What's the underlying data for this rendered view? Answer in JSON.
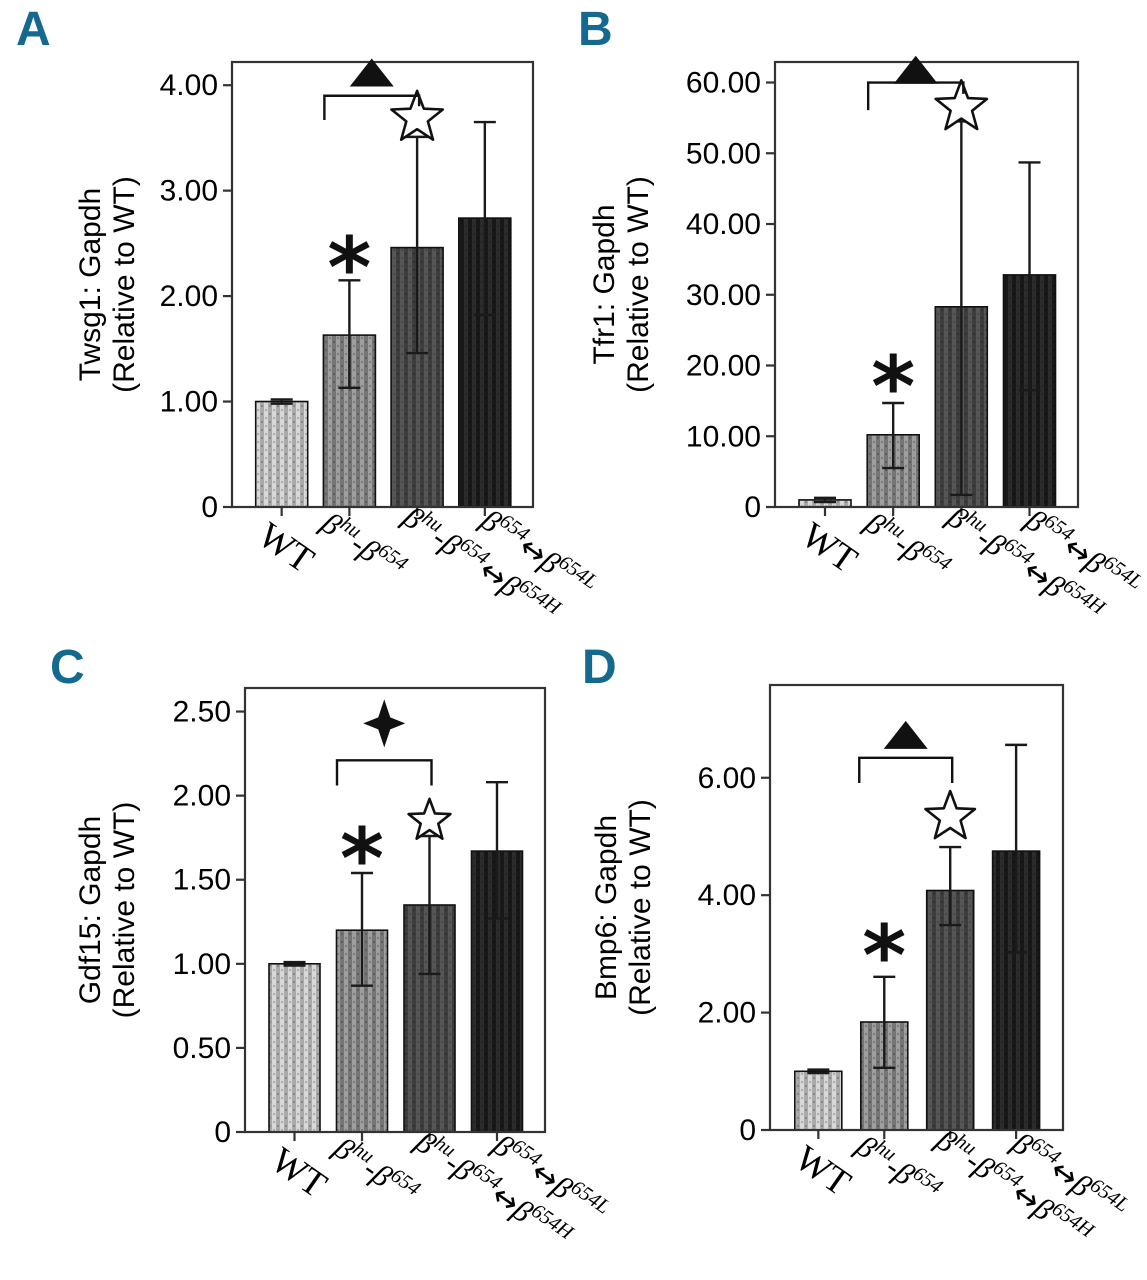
{
  "colors": {
    "background": "#ffffff",
    "panel_letter": "#15688e",
    "axis_frame": "#333333",
    "bar_outline": "#111111",
    "error_bar": "#1a1a1a",
    "annotation": "#111111",
    "bar_styles": [
      {
        "name": "light-gray-stripes",
        "c1": "#d8d8d8",
        "c2": "#a9a9a9"
      },
      {
        "name": "medium-gray-stripes",
        "c1": "#9e9e9e",
        "c2": "#757575"
      },
      {
        "name": "dark-gray-stripes",
        "c1": "#565656",
        "c2": "#3d3d3d"
      },
      {
        "name": "charcoal-stripes",
        "c1": "#2c2c2c",
        "c2": "#181818"
      }
    ]
  },
  "x_axis": {
    "categories": [
      "WT",
      "βhu-β654",
      "βhu-β654↔β654H",
      "β654↔β654L"
    ],
    "categories_rich": [
      [
        {
          "t": "WT",
          "sup": false,
          "italic": false
        }
      ],
      [
        {
          "t": "β",
          "sup": false,
          "italic": true
        },
        {
          "t": "hu",
          "sup": true,
          "italic": true
        },
        {
          "t": "-β",
          "sup": false,
          "italic": true
        },
        {
          "t": "654",
          "sup": true,
          "italic": true
        }
      ],
      [
        {
          "t": "β",
          "sup": false,
          "italic": true
        },
        {
          "t": "hu",
          "sup": true,
          "italic": true
        },
        {
          "t": "-β",
          "sup": false,
          "italic": true
        },
        {
          "t": "654",
          "sup": true,
          "italic": true
        },
        {
          "t": "↔",
          "sup": false,
          "italic": false
        },
        {
          "t": "β",
          "sup": false,
          "italic": true
        },
        {
          "t": "654H",
          "sup": true,
          "italic": true
        }
      ],
      [
        {
          "t": "β",
          "sup": false,
          "italic": true
        },
        {
          "t": "654",
          "sup": true,
          "italic": true
        },
        {
          "t": "↔",
          "sup": false,
          "italic": false
        },
        {
          "t": "β",
          "sup": false,
          "italic": true
        },
        {
          "t": "654L",
          "sup": true,
          "italic": true
        }
      ]
    ]
  },
  "chart_data": [
    {
      "panel": "A",
      "type": "bar",
      "ylabel_lines": [
        "Twsg1: Gapdh",
        "(Relative to WT)"
      ],
      "categories": [
        "WT",
        "βhu-β654",
        "βhu-β654↔β654H",
        "β654↔β654L"
      ],
      "values": [
        1.0,
        1.63,
        2.46,
        2.74
      ],
      "error_low": [
        0.02,
        0.5,
        1.0,
        0.92
      ],
      "error_high": [
        0.02,
        0.52,
        1.05,
        0.91
      ],
      "ylim": [
        0,
        4.22
      ],
      "ytick_values": [
        4,
        3,
        2,
        1,
        0
      ],
      "ytick_labels": [
        "4.00",
        "3.00",
        "2.00",
        "1.00",
        "0"
      ],
      "grid": false,
      "annotations": {
        "asterisk": {
          "bar": 2,
          "y": 2.37,
          "glyph": "*"
        },
        "open_star": {
          "bar": 3,
          "y": 3.69,
          "glyph": "☆"
        },
        "bracket": {
          "from_bar": 2,
          "to_bar": 3,
          "y": 3.9,
          "left_drop": 0.23,
          "right_drop": 0.1
        },
        "bracket_symbol": {
          "glyph": "▲",
          "shape": "filled_triangle",
          "y": 4.12
        }
      }
    },
    {
      "panel": "B",
      "type": "bar",
      "ylabel_lines": [
        "Tfr1: Gapdh",
        "(Relative to WT)"
      ],
      "categories": [
        "WT",
        "βhu-β654",
        "βhu-β654↔β654H",
        "β654↔β654L"
      ],
      "values": [
        1.0,
        10.2,
        28.3,
        32.8
      ],
      "error_low": [
        0.3,
        4.7,
        26.6,
        16.3
      ],
      "error_high": [
        0.3,
        4.5,
        26.2,
        15.9
      ],
      "ylim": [
        0,
        62.9
      ],
      "ytick_values": [
        60,
        50,
        40,
        30,
        20,
        10,
        0
      ],
      "ytick_labels": [
        "60.00",
        "50.00",
        "40.00",
        "30.00",
        "20.00",
        "10.00",
        "0"
      ],
      "grid": false,
      "annotations": {
        "asterisk": {
          "bar": 2,
          "y": 18.5,
          "glyph": "*"
        },
        "open_star": {
          "bar": 3,
          "y": 56.5,
          "glyph": "☆"
        },
        "bracket": {
          "from_bar": 2,
          "to_bar": 3,
          "y": 60.0,
          "left_drop": 3.9,
          "right_drop": 1.6
        },
        "bracket_symbol": {
          "glyph": "▲",
          "shape": "filled_triangle",
          "y": 61.8
        }
      }
    },
    {
      "panel": "C",
      "type": "bar",
      "ylabel_lines": [
        "Gdf15: Gapdh",
        "(Relative to WT)"
      ],
      "categories": [
        "WT",
        "βhu-β654",
        "βhu-β654↔β654H",
        "β654↔β654L"
      ],
      "values": [
        1.0,
        1.2,
        1.35,
        1.67
      ],
      "error_low": [
        0.01,
        0.33,
        0.41,
        0.4
      ],
      "error_high": [
        0.01,
        0.34,
        0.41,
        0.41
      ],
      "ylim": [
        0,
        2.64
      ],
      "ytick_values": [
        2.5,
        2.0,
        1.5,
        1.0,
        0.5,
        0
      ],
      "ytick_labels": [
        "2.50",
        "2.00",
        "1.50",
        "1.00",
        "0.50",
        "0"
      ],
      "grid": false,
      "annotations": {
        "asterisk": {
          "bar": 2,
          "y": 1.69,
          "glyph": "*"
        },
        "open_star": {
          "bar": 3,
          "y": 1.85,
          "glyph": "☆"
        },
        "bracket": {
          "from_bar": 2,
          "to_bar": 3,
          "y": 2.21,
          "left_drop": 0.15,
          "right_drop": 0.15
        },
        "bracket_symbol": {
          "glyph": "✦",
          "shape": "four_point_star",
          "y": 2.43
        }
      }
    },
    {
      "panel": "D",
      "type": "bar",
      "ylabel_lines": [
        "Bmp6: Gapdh",
        "(Relative to WT)"
      ],
      "categories": [
        "WT",
        "βhu-β654",
        "βhu-β654↔β654H",
        "β654↔β654L"
      ],
      "values": [
        1.0,
        1.84,
        4.08,
        4.75
      ],
      "error_low": [
        0.03,
        0.78,
        0.59,
        1.72
      ],
      "error_high": [
        0.03,
        0.77,
        0.74,
        1.81
      ],
      "ylim": [
        0,
        7.58
      ],
      "ytick_values": [
        6,
        4,
        2,
        0
      ],
      "ytick_labels": [
        "6.00",
        "4.00",
        "2.00",
        "0"
      ],
      "grid": false,
      "annotations": {
        "asterisk": {
          "bar": 2,
          "y": 3.15,
          "glyph": "*"
        },
        "open_star": {
          "bar": 3,
          "y": 5.33,
          "glyph": "☆"
        },
        "bracket": {
          "from_bar": 2,
          "to_bar": 3,
          "y": 6.34,
          "left_drop": 0.43,
          "right_drop": 0.43
        },
        "bracket_symbol": {
          "glyph": "▲",
          "shape": "filled_triangle",
          "y": 6.73
        }
      }
    }
  ]
}
